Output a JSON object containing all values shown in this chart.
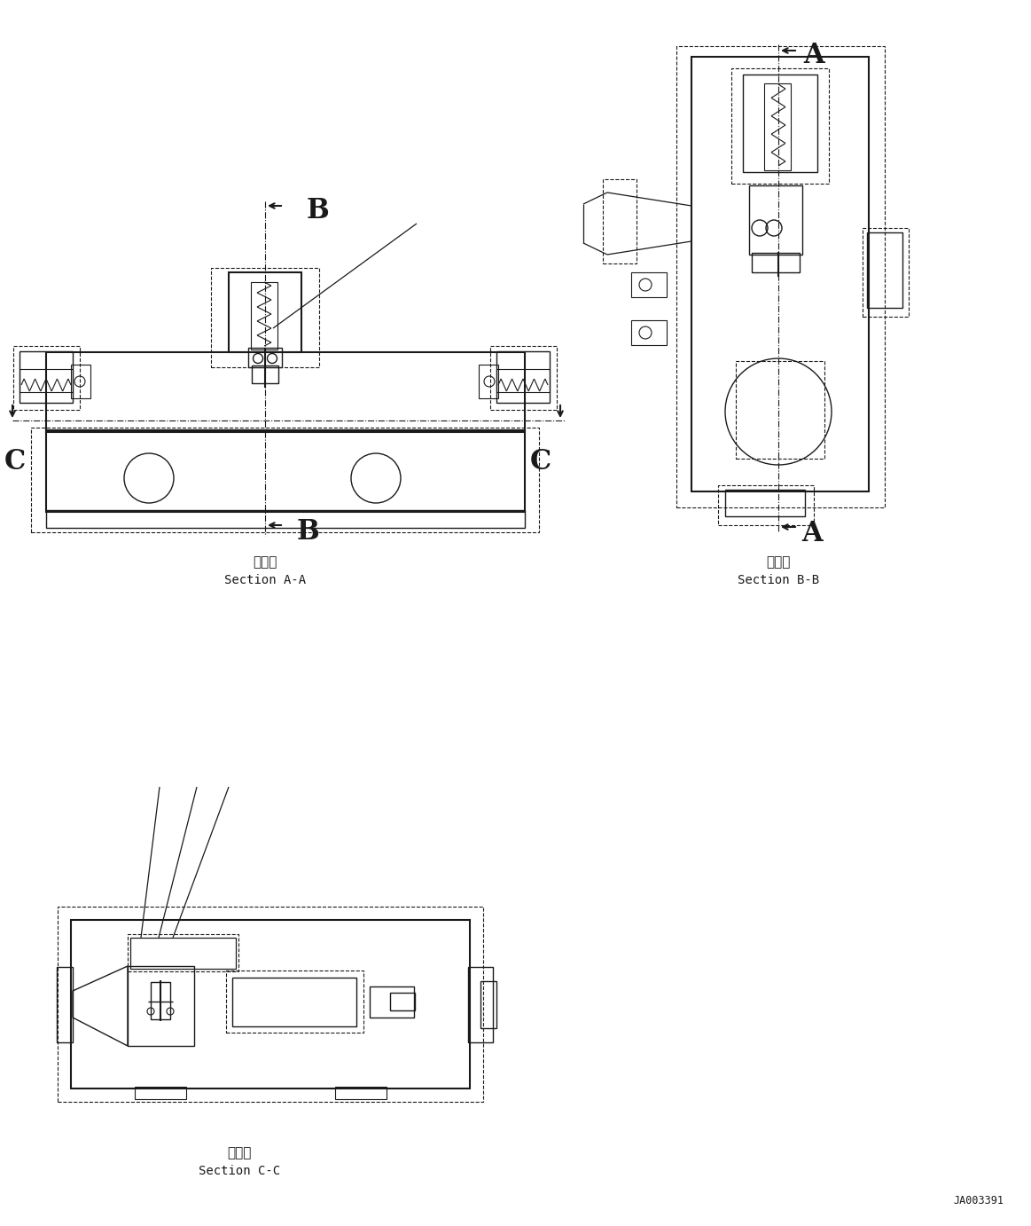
{
  "bg_color": "#ffffff",
  "line_color": "#1a1a1a",
  "fig_width": 11.63,
  "fig_height": 13.82,
  "dpi": 100,
  "watermark": "JA003391",
  "label_aa_jp": "断　面",
  "label_aa_en": "Section A-A",
  "label_bb_jp": "断　面",
  "label_bb_en": "Section B-B",
  "label_cc_jp": "断　面",
  "label_cc_en": "Section C-C",
  "section_letter_fontsize": 22,
  "label_fontsize_jp": 11,
  "label_fontsize_en": 10
}
